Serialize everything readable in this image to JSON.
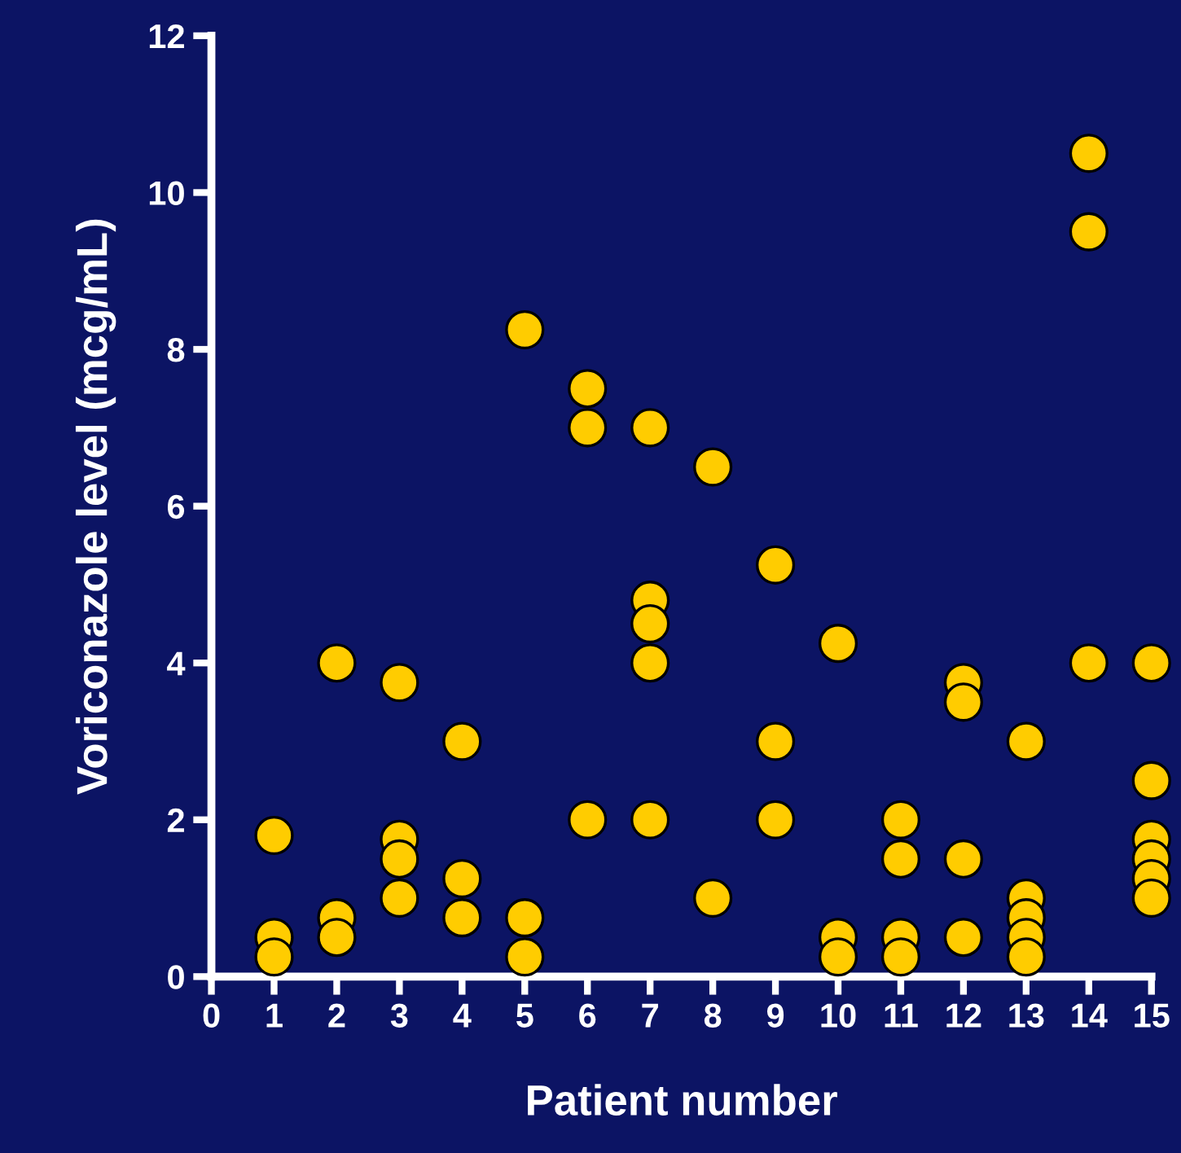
{
  "chart_data": {
    "type": "scatter",
    "xlabel": "Patient number",
    "ylabel": "Voriconazole level (mcg/mL)",
    "x": [
      1,
      1,
      1,
      2,
      2,
      2,
      3,
      3,
      3,
      3,
      4,
      4,
      4,
      5,
      5,
      5,
      6,
      6,
      6,
      7,
      7,
      7,
      7,
      7,
      8,
      8,
      9,
      9,
      9,
      10,
      10,
      10,
      11,
      11,
      11,
      11,
      12,
      12,
      12,
      12,
      13,
      13,
      13,
      13,
      13,
      14,
      14,
      14,
      15,
      15,
      15,
      15,
      15,
      15
    ],
    "series": [
      {
        "color": "#ffcc00",
        "values": [
          1.8,
          0.5,
          0.25,
          4.0,
          0.75,
          0.5,
          3.75,
          1.75,
          1.5,
          1.0,
          3.0,
          1.25,
          0.75,
          8.25,
          0.75,
          0.25,
          7.5,
          7.0,
          2.0,
          7.0,
          4.8,
          4.5,
          4.0,
          2.0,
          6.5,
          1.0,
          5.25,
          3.0,
          2.0,
          4.25,
          0.5,
          0.25,
          2.0,
          1.5,
          0.5,
          0.25,
          3.75,
          3.5,
          1.5,
          0.5,
          3.0,
          1.0,
          0.75,
          0.5,
          0.25,
          10.5,
          9.5,
          4.0,
          4.0,
          2.5,
          1.75,
          1.5,
          1.25,
          1.0
        ]
      }
    ],
    "xlim": [
      0,
      15
    ],
    "xticks": [
      0,
      1,
      2,
      3,
      4,
      5,
      6,
      7,
      8,
      9,
      10,
      11,
      12,
      13,
      14,
      15
    ],
    "ylim": [
      0,
      12
    ],
    "yticks": [
      0,
      2,
      4,
      6,
      8,
      10,
      12
    ],
    "marker": "circle",
    "grid": false,
    "legend": false
  }
}
